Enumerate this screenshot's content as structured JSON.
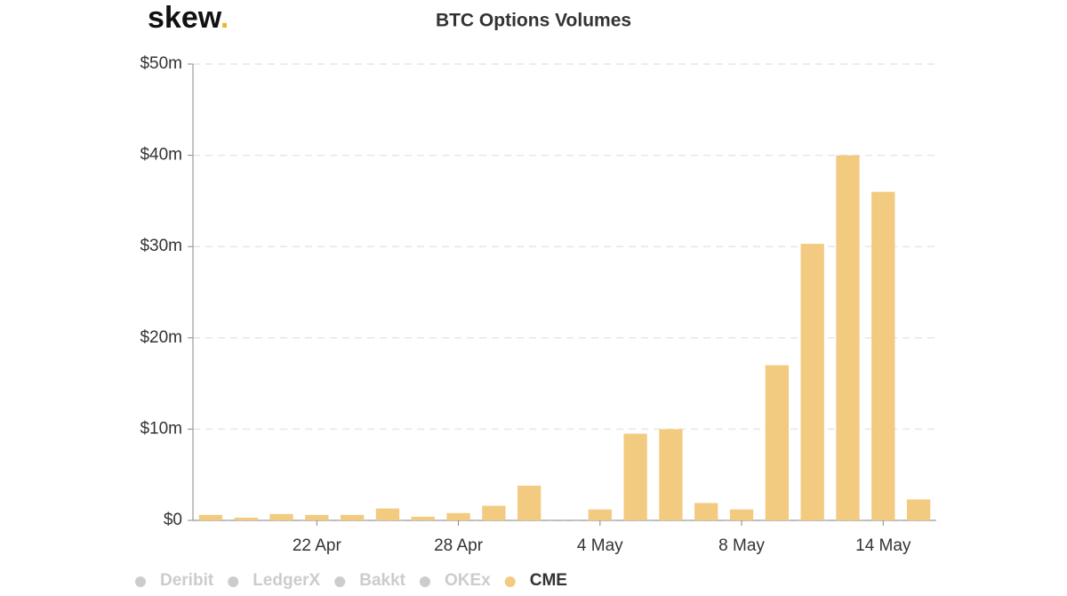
{
  "chart_data": {
    "type": "bar",
    "title": "BTC Options Volumes",
    "logo": {
      "text": "skew",
      "dot": "."
    },
    "categories": [
      null,
      null,
      null,
      "22 Apr",
      null,
      null,
      null,
      "28 Apr",
      null,
      null,
      null,
      "4 May",
      null,
      null,
      null,
      "8 May",
      null,
      null,
      null,
      "14 May",
      null
    ],
    "hidden_series": [
      "Deribit",
      "LedgerX",
      "Bakkt",
      "OKEx"
    ],
    "series": [
      {
        "name": "CME",
        "color": "#f2ca80",
        "values": [
          0.6,
          0.3,
          0.7,
          0.6,
          0.6,
          1.3,
          0.4,
          0.8,
          1.6,
          3.8,
          0,
          1.2,
          9.5,
          10.0,
          1.9,
          1.2,
          17.0,
          30.3,
          40.0,
          36.0,
          2.3
        ]
      }
    ],
    "ylim": [
      0,
      50
    ],
    "yticks": [
      {
        "value": 0,
        "label": "$0"
      },
      {
        "value": 10,
        "label": "$10m"
      },
      {
        "value": 20,
        "label": "$20m"
      },
      {
        "value": 30,
        "label": "$30m"
      },
      {
        "value": 40,
        "label": "$40m"
      },
      {
        "value": 50,
        "label": "$50m"
      }
    ],
    "grid": true
  }
}
